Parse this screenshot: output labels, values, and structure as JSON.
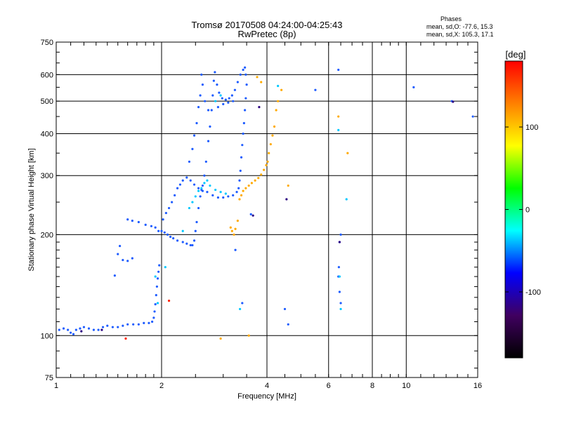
{
  "chart_data": {
    "type": "scatter",
    "title": "Tromsø 20170508 04:24:00-04:25:43",
    "subtitle": "RwPretec (8p)",
    "xlabel": "Frequency [MHz]",
    "ylabel": "Stationary phase Virtual Height [km]",
    "x_scale": "log",
    "y_scale": "log",
    "xlim": [
      1,
      16
    ],
    "ylim": [
      75,
      750
    ],
    "x_ticks": [
      "1",
      "2",
      "4",
      "6",
      "8",
      "10",
      "16"
    ],
    "x_tick_values": [
      1,
      2,
      4,
      6,
      8,
      10,
      16
    ],
    "y_ticks": [
      "75",
      "100",
      "200",
      "300",
      "400",
      "500",
      "600",
      "750"
    ],
    "y_tick_values": [
      75,
      100,
      200,
      300,
      400,
      500,
      600,
      750
    ],
    "grid": true,
    "legend": {
      "title": "Phases",
      "lines": [
        "mean, sd,O: -77.6, 15.3",
        "mean, sd,X: 105.3, 17.1"
      ],
      "placement": "top-right"
    },
    "colorbar": {
      "label": "[deg]",
      "range": [
        -180,
        180
      ],
      "ticks": [
        "100",
        "0",
        "-100"
      ],
      "tick_values": [
        100,
        0,
        -100
      ],
      "colors": [
        "#ff0000",
        "#ff8000",
        "#ffff00",
        "#00ff00",
        "#00ffff",
        "#0000ff",
        "#400060",
        "#000000"
      ]
    },
    "series": [
      {
        "mode": "O",
        "color": "#1e5cff",
        "points": [
          [
            1.02,
            104
          ],
          [
            1.05,
            105
          ],
          [
            1.08,
            104
          ],
          [
            1.1,
            102
          ],
          [
            1.12,
            101
          ],
          [
            1.14,
            104
          ],
          [
            1.17,
            105
          ],
          [
            1.2,
            106
          ],
          [
            1.24,
            105
          ],
          [
            1.28,
            104
          ],
          [
            1.32,
            104
          ],
          [
            1.36,
            106
          ],
          [
            1.4,
            107
          ],
          [
            1.45,
            106
          ],
          [
            1.5,
            106
          ],
          [
            1.55,
            107
          ],
          [
            1.6,
            108
          ],
          [
            1.66,
            108
          ],
          [
            1.72,
            108
          ],
          [
            1.78,
            109
          ],
          [
            1.84,
            109
          ],
          [
            1.88,
            110
          ],
          [
            1.9,
            113
          ],
          [
            1.91,
            118
          ],
          [
            1.92,
            124
          ],
          [
            1.93,
            132
          ],
          [
            1.94,
            140
          ],
          [
            1.95,
            148
          ],
          [
            1.96,
            155
          ],
          [
            1.97,
            162
          ],
          [
            1.47,
            151
          ],
          [
            1.5,
            175
          ],
          [
            1.55,
            168
          ],
          [
            1.6,
            167
          ],
          [
            1.65,
            170
          ],
          [
            1.52,
            185
          ],
          [
            1.6,
            222
          ],
          [
            1.65,
            220
          ],
          [
            1.72,
            218
          ],
          [
            1.8,
            214
          ],
          [
            1.87,
            212
          ],
          [
            1.92,
            210
          ],
          [
            1.96,
            205
          ],
          [
            2.0,
            205
          ],
          [
            2.04,
            203
          ],
          [
            2.08,
            200
          ],
          [
            2.12,
            197
          ],
          [
            2.16,
            195
          ],
          [
            2.22,
            192
          ],
          [
            2.3,
            190
          ],
          [
            2.36,
            188
          ],
          [
            2.42,
            186
          ],
          [
            2.45,
            186
          ],
          [
            2.48,
            192
          ],
          [
            2.5,
            205
          ],
          [
            2.52,
            218
          ],
          [
            2.55,
            240
          ],
          [
            2.58,
            260
          ],
          [
            2.6,
            272
          ],
          [
            2.62,
            280
          ],
          [
            2.65,
            300
          ],
          [
            2.68,
            330
          ],
          [
            2.72,
            380
          ],
          [
            2.75,
            420
          ],
          [
            2.78,
            470
          ],
          [
            2.8,
            520
          ],
          [
            2.82,
            575
          ],
          [
            2.84,
            610
          ],
          [
            2.88,
            560
          ],
          [
            2.92,
            530
          ],
          [
            2.98,
            510
          ],
          [
            3.05,
            505
          ],
          [
            3.12,
            510
          ],
          [
            3.18,
            520
          ],
          [
            3.24,
            540
          ],
          [
            3.3,
            570
          ],
          [
            3.36,
            600
          ],
          [
            3.42,
            620
          ],
          [
            3.46,
            630
          ],
          [
            3.48,
            600
          ],
          [
            3.5,
            560
          ],
          [
            3.48,
            510
          ],
          [
            3.46,
            470
          ],
          [
            3.44,
            430
          ],
          [
            3.42,
            400
          ],
          [
            3.4,
            370
          ],
          [
            3.38,
            340
          ],
          [
            3.36,
            310
          ],
          [
            3.34,
            290
          ],
          [
            3.32,
            275
          ],
          [
            3.28,
            268
          ],
          [
            3.2,
            262
          ],
          [
            3.1,
            260
          ],
          [
            3.0,
            258
          ],
          [
            2.9,
            258
          ],
          [
            2.8,
            262
          ],
          [
            2.7,
            268
          ],
          [
            2.62,
            270
          ],
          [
            2.55,
            275
          ],
          [
            2.48,
            282
          ],
          [
            2.42,
            290
          ],
          [
            2.36,
            296
          ],
          [
            2.3,
            290
          ],
          [
            2.26,
            282
          ],
          [
            2.22,
            275
          ],
          [
            2.18,
            262
          ],
          [
            2.14,
            250
          ],
          [
            2.1,
            240
          ],
          [
            2.06,
            232
          ],
          [
            2.02,
            222
          ],
          [
            2.4,
            330
          ],
          [
            2.45,
            360
          ],
          [
            2.48,
            395
          ],
          [
            2.52,
            430
          ],
          [
            2.55,
            480
          ],
          [
            2.58,
            520
          ],
          [
            2.6,
            600
          ],
          [
            2.62,
            560
          ],
          [
            2.66,
            500
          ],
          [
            2.72,
            470
          ],
          [
            2.9,
            480
          ],
          [
            3.0,
            490
          ],
          [
            3.1,
            495
          ],
          [
            3.2,
            500
          ],
          [
            3.25,
            180
          ],
          [
            3.4,
            125
          ],
          [
            3.6,
            230
          ],
          [
            4.5,
            120
          ],
          [
            4.6,
            108
          ],
          [
            5.5,
            540
          ],
          [
            6.4,
            620
          ],
          [
            6.5,
            200
          ],
          [
            6.45,
            190
          ],
          [
            6.42,
            160
          ],
          [
            6.4,
            150
          ],
          [
            6.45,
            135
          ],
          [
            6.5,
            125
          ],
          [
            10.5,
            550
          ],
          [
            13.5,
            500
          ],
          [
            15.5,
            450
          ]
        ]
      },
      {
        "mode": "X",
        "color": "#ffaa00",
        "points": [
          [
            3.15,
            210
          ],
          [
            3.18,
            205
          ],
          [
            3.22,
            200
          ],
          [
            3.25,
            208
          ],
          [
            3.3,
            220
          ],
          [
            3.34,
            255
          ],
          [
            3.38,
            262
          ],
          [
            3.42,
            270
          ],
          [
            3.48,
            275
          ],
          [
            3.55,
            280
          ],
          [
            3.62,
            285
          ],
          [
            3.7,
            290
          ],
          [
            3.78,
            295
          ],
          [
            3.85,
            302
          ],
          [
            3.92,
            312
          ],
          [
            3.98,
            322
          ],
          [
            4.02,
            330
          ],
          [
            4.05,
            350
          ],
          [
            4.1,
            372
          ],
          [
            4.15,
            395
          ],
          [
            4.2,
            420
          ],
          [
            4.25,
            470
          ],
          [
            4.3,
            500
          ],
          [
            4.4,
            540
          ],
          [
            3.75,
            590
          ],
          [
            3.85,
            570
          ],
          [
            3.55,
            100
          ],
          [
            2.95,
            98
          ],
          [
            4.6,
            280
          ],
          [
            6.4,
            450
          ],
          [
            6.8,
            350
          ]
        ]
      },
      {
        "mode": "other",
        "color": "#00c8ff",
        "points": [
          [
            2.55,
            270
          ],
          [
            2.6,
            275
          ],
          [
            2.65,
            285
          ],
          [
            2.7,
            290
          ],
          [
            2.75,
            280
          ],
          [
            2.85,
            272
          ],
          [
            2.95,
            268
          ],
          [
            3.05,
            265
          ],
          [
            2.4,
            240
          ],
          [
            2.45,
            250
          ],
          [
            2.5,
            260
          ],
          [
            2.85,
            500
          ],
          [
            2.95,
            520
          ],
          [
            3.35,
            120
          ],
          [
            4.3,
            555
          ],
          [
            6.4,
            410
          ],
          [
            6.45,
            150
          ],
          [
            6.5,
            120
          ],
          [
            6.75,
            255
          ],
          [
            2.3,
            205
          ],
          [
            1.92,
            150
          ],
          [
            1.95,
            125
          ],
          [
            2.05,
            160
          ]
        ]
      },
      {
        "mode": "other",
        "color": "#2a0080",
        "points": [
          [
            1.18,
            103
          ],
          [
            1.35,
            104
          ],
          [
            3.65,
            228
          ],
          [
            3.8,
            480
          ],
          [
            4.55,
            255
          ],
          [
            6.45,
            190
          ],
          [
            13.6,
            498
          ]
        ]
      },
      {
        "mode": "other",
        "color": "#ff2000",
        "points": [
          [
            1.58,
            98
          ],
          [
            2.1,
            127
          ]
        ]
      }
    ]
  }
}
